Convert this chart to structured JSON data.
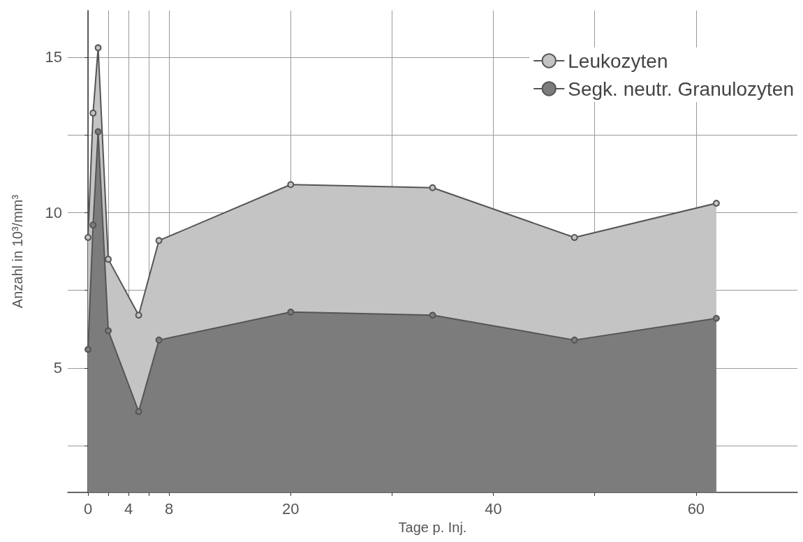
{
  "chart_data": {
    "type": "area",
    "xlabel": "Tage p. Inj.",
    "ylabel": "Anzahl in 10³/mm³",
    "x": [
      0,
      0.5,
      1,
      2,
      5,
      7,
      20,
      34,
      48,
      62
    ],
    "series": [
      {
        "name": "Leukozyten",
        "color": "#c4c4c4",
        "values": [
          9.2,
          13.2,
          15.3,
          8.5,
          6.7,
          9.1,
          10.9,
          10.8,
          9.2,
          10.3
        ]
      },
      {
        "name": "Segk. neutr. Granulozyten",
        "color": "#7c7c7c",
        "values": [
          5.6,
          9.6,
          12.6,
          6.2,
          3.6,
          5.9,
          6.8,
          6.7,
          5.9,
          6.6
        ]
      }
    ],
    "xlim": [
      -2,
      70
    ],
    "xticks": [
      0,
      {
        "value": 2,
        "label": null
      },
      4,
      {
        "value": 6,
        "label": null
      },
      8,
      20,
      {
        "value": 30,
        "label": null
      },
      40,
      {
        "value": 50,
        "label": null
      },
      60
    ],
    "ylim": [
      1,
      16.5
    ],
    "yticks": [
      {
        "value": 2.5,
        "label": null
      },
      5,
      {
        "value": 7.5,
        "label": null
      },
      10,
      {
        "value": 12.5,
        "label": null
      },
      15
    ],
    "grid": true,
    "legend": "top right",
    "marker": "circle",
    "line_style": "solid"
  }
}
